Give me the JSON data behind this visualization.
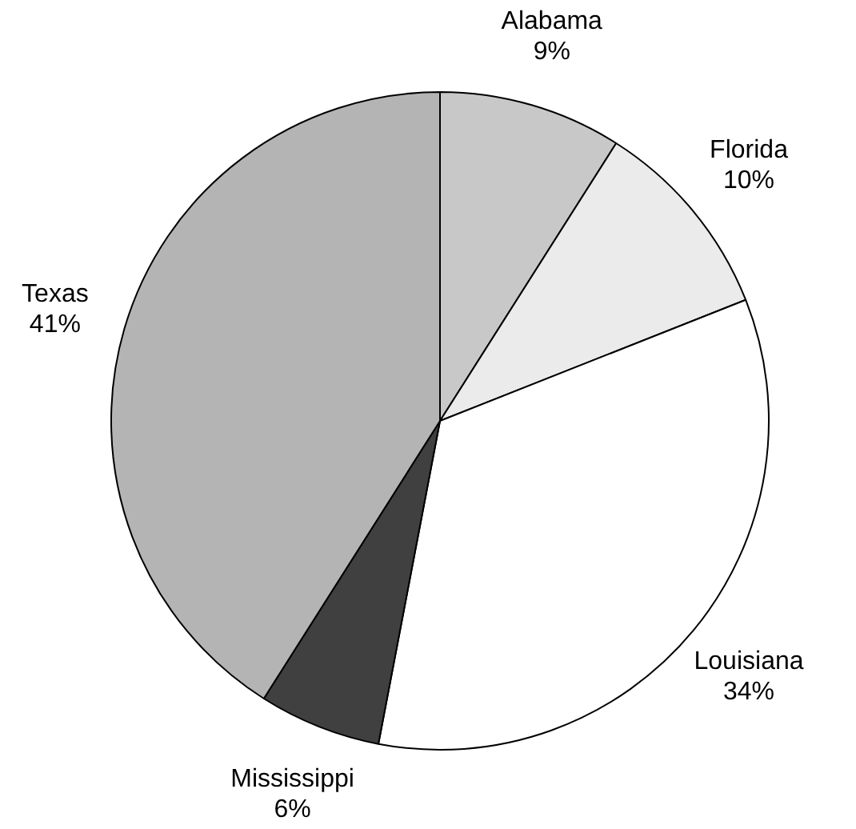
{
  "chart_data": {
    "type": "pie",
    "categories": [
      "Alabama",
      "Florida",
      "Louisiana",
      "Mississippi",
      "Texas"
    ],
    "values": [
      9,
      10,
      34,
      6,
      41
    ],
    "value_labels": [
      "9%",
      "10%",
      "34%",
      "6%",
      "41%"
    ],
    "colors": [
      "#c8c8c8",
      "#ebebeb",
      "#ffffff",
      "#404040",
      "#b4b4b4"
    ],
    "legend": false
  }
}
